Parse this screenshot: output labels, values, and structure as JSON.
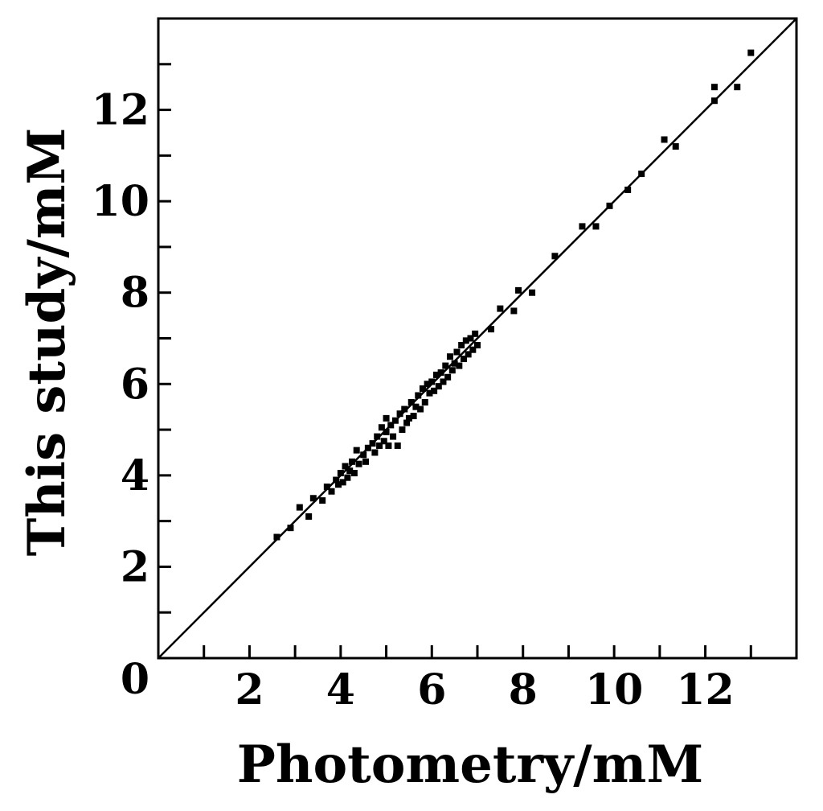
{
  "chart_data": {
    "type": "scatter",
    "title": "",
    "xlabel": "Photometry/mM",
    "ylabel": "This study/mM",
    "xlim": [
      0,
      14
    ],
    "ylim": [
      0,
      14
    ],
    "x_major_ticks": [
      2,
      4,
      6,
      8,
      10,
      12
    ],
    "x_minor_ticks": [
      1,
      3,
      5,
      7,
      9,
      11,
      13
    ],
    "y_major_ticks": [
      2,
      4,
      6,
      8,
      10,
      12
    ],
    "y_minor_ticks": [
      1,
      3,
      5,
      7,
      9,
      11,
      13
    ],
    "origin_label": "0",
    "grid": false,
    "legend": "none",
    "colors": {
      "marks": "#000000",
      "background": "#ffffff"
    },
    "fit_line": {
      "from": [
        0,
        0
      ],
      "to": [
        14,
        14
      ]
    },
    "series": [
      {
        "points": [
          [
            2.6,
            2.65
          ],
          [
            2.9,
            2.85
          ],
          [
            3.1,
            3.3
          ],
          [
            3.3,
            3.1
          ],
          [
            3.4,
            3.5
          ],
          [
            3.6,
            3.45
          ],
          [
            3.7,
            3.75
          ],
          [
            3.8,
            3.65
          ],
          [
            3.9,
            3.9
          ],
          [
            3.95,
            3.8
          ],
          [
            4.0,
            4.05
          ],
          [
            4.05,
            3.85
          ],
          [
            4.1,
            4.2
          ],
          [
            4.15,
            3.95
          ],
          [
            4.2,
            4.1
          ],
          [
            4.25,
            4.3
          ],
          [
            4.3,
            4.05
          ],
          [
            4.35,
            4.55
          ],
          [
            4.4,
            4.25
          ],
          [
            4.5,
            4.45
          ],
          [
            4.55,
            4.3
          ],
          [
            4.6,
            4.6
          ],
          [
            4.7,
            4.7
          ],
          [
            4.75,
            4.5
          ],
          [
            4.8,
            4.85
          ],
          [
            4.85,
            4.65
          ],
          [
            4.9,
            5.05
          ],
          [
            4.95,
            4.75
          ],
          [
            5.0,
            4.95
          ],
          [
            5.0,
            5.25
          ],
          [
            5.05,
            4.65
          ],
          [
            5.1,
            5.1
          ],
          [
            5.15,
            4.85
          ],
          [
            5.2,
            5.2
          ],
          [
            5.25,
            4.65
          ],
          [
            5.3,
            5.35
          ],
          [
            5.35,
            5.0
          ],
          [
            5.4,
            5.45
          ],
          [
            5.45,
            5.15
          ],
          [
            5.5,
            5.25
          ],
          [
            5.55,
            5.6
          ],
          [
            5.6,
            5.3
          ],
          [
            5.65,
            5.5
          ],
          [
            5.7,
            5.75
          ],
          [
            5.75,
            5.45
          ],
          [
            5.8,
            5.9
          ],
          [
            5.85,
            5.6
          ],
          [
            5.9,
            6.0
          ],
          [
            5.95,
            5.8
          ],
          [
            6.0,
            6.05
          ],
          [
            6.05,
            5.85
          ],
          [
            6.1,
            6.2
          ],
          [
            6.15,
            5.95
          ],
          [
            6.2,
            6.25
          ],
          [
            6.25,
            6.05
          ],
          [
            6.3,
            6.4
          ],
          [
            6.35,
            6.15
          ],
          [
            6.4,
            6.6
          ],
          [
            6.45,
            6.3
          ],
          [
            6.5,
            6.45
          ],
          [
            6.55,
            6.7
          ],
          [
            6.6,
            6.4
          ],
          [
            6.65,
            6.85
          ],
          [
            6.7,
            6.55
          ],
          [
            6.75,
            6.95
          ],
          [
            6.8,
            6.65
          ],
          [
            6.85,
            7.0
          ],
          [
            6.9,
            6.75
          ],
          [
            6.95,
            7.1
          ],
          [
            7.0,
            6.85
          ],
          [
            7.3,
            7.2
          ],
          [
            7.5,
            7.65
          ],
          [
            7.8,
            7.6
          ],
          [
            7.9,
            8.05
          ],
          [
            8.2,
            8.0
          ],
          [
            8.7,
            8.8
          ],
          [
            9.3,
            9.45
          ],
          [
            9.6,
            9.45
          ],
          [
            9.9,
            9.9
          ],
          [
            10.3,
            10.25
          ],
          [
            10.6,
            10.6
          ],
          [
            11.1,
            11.35
          ],
          [
            11.35,
            11.2
          ],
          [
            12.2,
            12.2
          ],
          [
            12.2,
            12.5
          ],
          [
            12.7,
            12.5
          ],
          [
            13.0,
            13.25
          ]
        ]
      }
    ]
  }
}
